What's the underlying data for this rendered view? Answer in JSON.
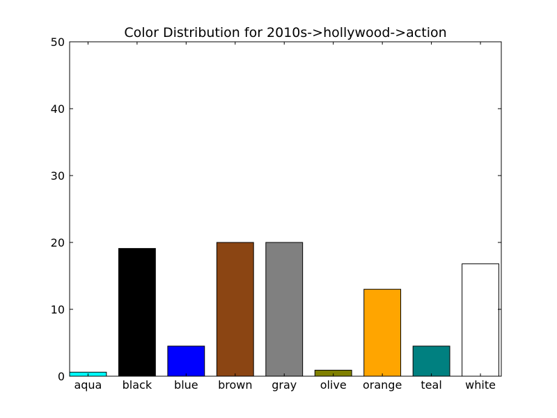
{
  "chart_data": {
    "type": "bar",
    "title": "Color Distribution for 2010s->hollywood->action",
    "xlabel": "",
    "ylabel": "",
    "categories": [
      "aqua",
      "black",
      "blue",
      "brown",
      "gray",
      "olive",
      "orange",
      "teal",
      "white"
    ],
    "values": [
      0.6,
      19.1,
      4.5,
      20.0,
      20.0,
      0.9,
      13.0,
      4.5,
      16.8
    ],
    "bar_colors": [
      "#00ffff",
      "#000000",
      "#0000ff",
      "#8b4513",
      "#808080",
      "#808000",
      "#ffa500",
      "#008080",
      "#ffffff"
    ],
    "ylim": [
      0,
      50
    ],
    "yticks": [
      0,
      10,
      20,
      30,
      40,
      50
    ],
    "grid": false,
    "legend": "none"
  }
}
